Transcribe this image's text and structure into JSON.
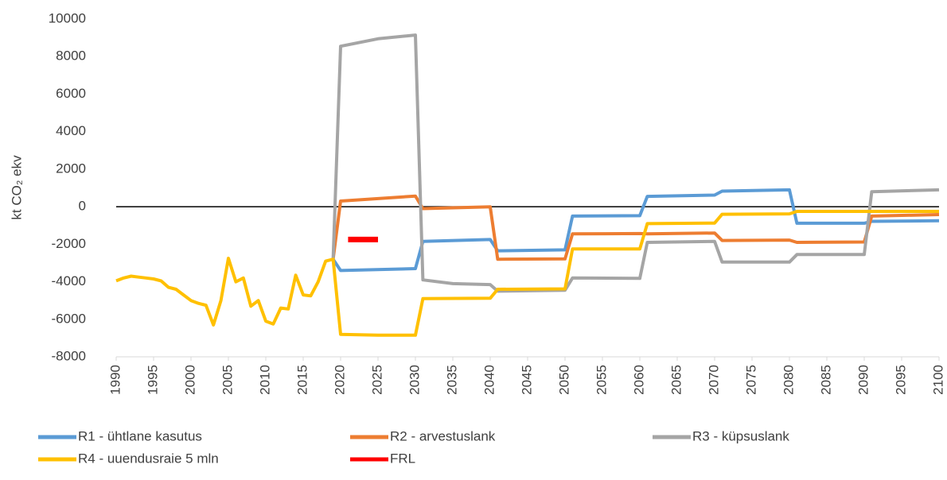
{
  "chart_data": {
    "type": "line",
    "ylabel": "kt CO₂ ekv",
    "xlim": [
      1990,
      2100
    ],
    "xticks": [
      1990,
      1995,
      2000,
      2005,
      2010,
      2015,
      2020,
      2025,
      2030,
      2035,
      2040,
      2045,
      2050,
      2055,
      2060,
      2065,
      2070,
      2075,
      2080,
      2085,
      2090,
      2095,
      2100
    ],
    "ylim": [
      -8000,
      10000
    ],
    "yticks": [
      -8000,
      -6000,
      -4000,
      -2000,
      0,
      2000,
      4000,
      6000,
      8000,
      10000
    ],
    "grid": false,
    "legend": "bottom",
    "series": [
      {
        "name": "R1 - ühtlane kasutus",
        "color": "#5b9bd5",
        "x": [
          2019,
          2020,
          2030,
          2031,
          2040,
          2041,
          2050,
          2051,
          2060,
          2061,
          2070,
          2071,
          2080,
          2081,
          2090,
          2091,
          2100
        ],
        "values": [
          -2800,
          -3400,
          -3300,
          -1850,
          -1750,
          -2350,
          -2300,
          -500,
          -480,
          550,
          620,
          830,
          900,
          -880,
          -880,
          -780,
          -750
        ]
      },
      {
        "name": "R2 - arvestuslank",
        "color": "#ed7d31",
        "x": [
          2019,
          2020,
          2030,
          2031,
          2040,
          2041,
          2050,
          2051,
          2060,
          2061,
          2070,
          2071,
          2080,
          2081,
          2090,
          2091,
          2100
        ],
        "values": [
          -2800,
          300,
          570,
          -100,
          -10,
          -2800,
          -2780,
          -1450,
          -1430,
          -1450,
          -1400,
          -1800,
          -1780,
          -1900,
          -1880,
          -500,
          -420
        ]
      },
      {
        "name": "R3 - küpsuslank",
        "color": "#a5a5a5",
        "x": [
          2019,
          2020,
          2025,
          2030,
          2031,
          2035,
          2040,
          2041,
          2050,
          2051,
          2060,
          2061,
          2070,
          2071,
          2080,
          2081,
          2090,
          2091,
          2100
        ],
        "values": [
          -2800,
          8550,
          8950,
          9150,
          -3900,
          -4100,
          -4150,
          -4500,
          -4450,
          -3800,
          -3820,
          -1900,
          -1850,
          -2950,
          -2950,
          -2550,
          -2550,
          800,
          900
        ]
      },
      {
        "name": "R4 - uuendusraie 5 mln",
        "color": "#ffc000",
        "x": [
          1990,
          1991,
          1992,
          1993,
          1994,
          1995,
          1996,
          1997,
          1998,
          1999,
          2000,
          2001,
          2002,
          2003,
          2004,
          2005,
          2006,
          2007,
          2008,
          2009,
          2010,
          2011,
          2012,
          2013,
          2014,
          2015,
          2016,
          2017,
          2018,
          2019,
          2020,
          2025,
          2030,
          2031,
          2040,
          2041,
          2050,
          2051,
          2060,
          2061,
          2070,
          2071,
          2080,
          2081,
          2100
        ],
        "values": [
          -3950,
          -3800,
          -3700,
          -3750,
          -3800,
          -3850,
          -3950,
          -4300,
          -4400,
          -4700,
          -5000,
          -5150,
          -5250,
          -6300,
          -5000,
          -2750,
          -4000,
          -3800,
          -5300,
          -5000,
          -6100,
          -6250,
          -5400,
          -5450,
          -3650,
          -4700,
          -4750,
          -4000,
          -2900,
          -2800,
          -6800,
          -6850,
          -6850,
          -4900,
          -4880,
          -4400,
          -4380,
          -2250,
          -2250,
          -900,
          -870,
          -400,
          -380,
          -250,
          -250
        ]
      },
      {
        "name": "FRL",
        "color": "#ff0000",
        "x": [
          2021,
          2025
        ],
        "values": [
          -1750,
          -1750
        ]
      }
    ]
  }
}
